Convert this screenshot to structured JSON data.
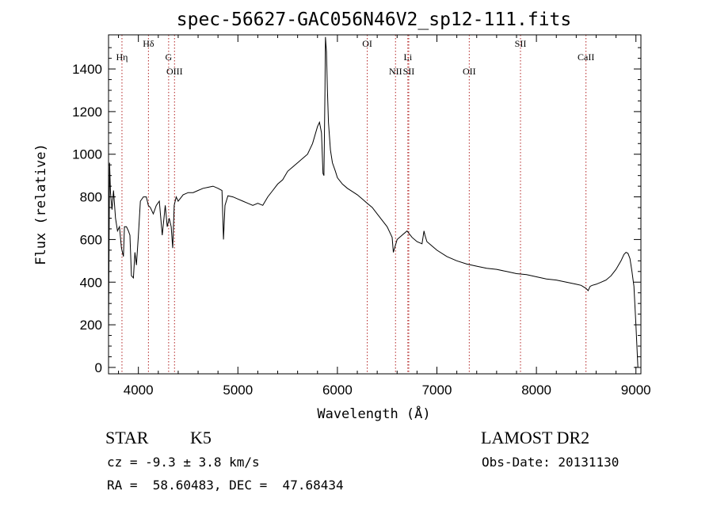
{
  "title": "spec-56627-GAC056N46V2_sp12-111.fits",
  "chart_data": {
    "type": "line",
    "xlabel": "Wavelength (Å)",
    "ylabel": "Flux (relative)",
    "xlim": [
      3700,
      9050
    ],
    "ylim": [
      -30,
      1560
    ],
    "xticks": [
      4000,
      5000,
      6000,
      7000,
      8000,
      9000
    ],
    "yticks": [
      0,
      200,
      400,
      600,
      800,
      1000,
      1200,
      1400
    ],
    "grid": false,
    "series": [
      {
        "x": [
          3700,
          3710,
          3720,
          3735,
          3750,
          3770,
          3790,
          3810,
          3830,
          3850,
          3860,
          3880,
          3900,
          3915,
          3930,
          3950,
          3965,
          3980,
          4000,
          4020,
          4050,
          4080,
          4100,
          4120,
          4150,
          4180,
          4210,
          4240,
          4270,
          4290,
          4310,
          4330,
          4345,
          4360,
          4380,
          4400,
          4450,
          4500,
          4550,
          4600,
          4650,
          4700,
          4750,
          4800,
          4840,
          4855,
          4870,
          4900,
          4950,
          5000,
          5050,
          5100,
          5150,
          5200,
          5250,
          5300,
          5350,
          5400,
          5450,
          5500,
          5550,
          5600,
          5650,
          5700,
          5750,
          5800,
          5820,
          5840,
          5855,
          5865,
          5875,
          5880,
          5890,
          5900,
          5910,
          5930,
          5950,
          5980,
          6000,
          6050,
          6100,
          6150,
          6200,
          6250,
          6300,
          6350,
          6400,
          6450,
          6500,
          6550,
          6562,
          6575,
          6600,
          6650,
          6700,
          6750,
          6800,
          6850,
          6870,
          6880,
          6900,
          6950,
          7000,
          7100,
          7200,
          7300,
          7400,
          7500,
          7600,
          7700,
          7800,
          7900,
          8000,
          8100,
          8200,
          8300,
          8400,
          8450,
          8500,
          8520,
          8540,
          8560,
          8600,
          8650,
          8700,
          8750,
          8800,
          8850,
          8880,
          8900,
          8920,
          8940,
          8960,
          8980,
          9000,
          9020
        ],
        "y": [
          150,
          960,
          820,
          740,
          830,
          700,
          640,
          660,
          560,
          520,
          660,
          660,
          640,
          620,
          430,
          420,
          540,
          480,
          620,
          780,
          800,
          800,
          760,
          750,
          720,
          760,
          780,
          620,
          760,
          660,
          700,
          660,
          560,
          760,
          800,
          780,
          810,
          820,
          820,
          830,
          840,
          845,
          850,
          840,
          830,
          600,
          760,
          805,
          800,
          790,
          780,
          770,
          760,
          770,
          760,
          800,
          830,
          860,
          880,
          920,
          940,
          960,
          980,
          1000,
          1050,
          1130,
          1150,
          1100,
          910,
          900,
          1300,
          1550,
          1480,
          1300,
          1150,
          1020,
          960,
          920,
          890,
          860,
          840,
          825,
          810,
          790,
          770,
          750,
          720,
          690,
          660,
          610,
          540,
          560,
          600,
          620,
          640,
          610,
          590,
          580,
          640,
          620,
          590,
          570,
          550,
          520,
          500,
          485,
          475,
          465,
          460,
          450,
          440,
          435,
          425,
          415,
          410,
          400,
          390,
          385,
          370,
          360,
          380,
          385,
          390,
          400,
          410,
          430,
          460,
          500,
          530,
          540,
          535,
          510,
          450,
          380,
          200,
          0
        ]
      }
    ],
    "spectral_lines": [
      {
        "label": "Hη",
        "x": 3835
      },
      {
        "label": "Hδ",
        "x": 4101
      },
      {
        "label": "G",
        "x": 4304
      },
      {
        "label": "OIII",
        "x": 4363
      },
      {
        "label": "OI",
        "x": 6300
      },
      {
        "label": "NII",
        "x": 6584
      },
      {
        "label": "Li",
        "x": 6708
      },
      {
        "label": "SII",
        "x": 6717
      },
      {
        "label": "OII",
        "x": 7325
      },
      {
        "label": "SII",
        "x": 7840
      },
      {
        "label": "CaII",
        "x": 8498
      }
    ]
  },
  "info": {
    "object_class": "STAR",
    "subclass": "K5",
    "survey": "LAMOST DR2",
    "cz": "cz = -9.3 ± 3.8 km/s",
    "obs_date": "Obs-Date: 20131130",
    "coords": "RA =  58.60483, DEC =  47.68434"
  }
}
